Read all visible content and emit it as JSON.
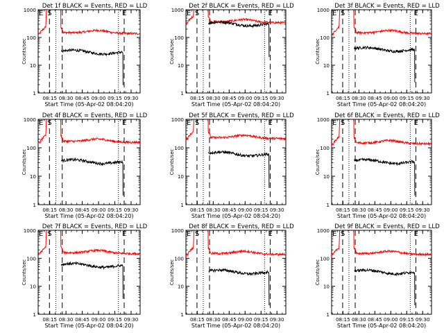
{
  "page": {
    "background": "#ffffff",
    "events_color": "#000000",
    "lld_color": "#ff0000"
  },
  "chart_data": [
    {
      "type": "line",
      "title": "Det 1f BLACK = Events, RED = LLD",
      "xlabel": "Start Time (05-Apr-02 08:04:20)",
      "ylabel": "Counts/sec",
      "yscale": "log",
      "ylim": [
        1,
        1000
      ],
      "yticks": [
        "1",
        "10",
        "100",
        "1000"
      ],
      "xticks": [
        "08:15",
        "08:30",
        "08:45",
        "09:00",
        "09:15",
        "09:30"
      ],
      "flags": [
        "E",
        "S",
        "E"
      ],
      "lld_level": 150,
      "events_level": 32,
      "series": [
        {
          "name": "BLACK = Events",
          "color": "#000000"
        },
        {
          "name": "RED = LLD",
          "color": "#ff0000"
        }
      ]
    },
    {
      "type": "line",
      "title": "Det 2f BLACK = Events, RED = LLD",
      "xlabel": "Start Time (05-Apr-02 08:04:20)",
      "ylabel": "Counts/sec",
      "yscale": "log",
      "ylim": [
        1,
        1000
      ],
      "yticks": [
        "1",
        "10",
        "100",
        "1000"
      ],
      "xticks": [
        "08:15",
        "08:30",
        "08:45",
        "09:00",
        "09:15",
        "09:30"
      ],
      "flags": [
        "E",
        "S",
        "E"
      ],
      "lld_level": 370,
      "events_level": 330,
      "series": [
        {
          "name": "BLACK = Events",
          "color": "#000000"
        },
        {
          "name": "RED = LLD",
          "color": "#ff0000"
        }
      ]
    },
    {
      "type": "line",
      "title": "Det 3f BLACK = Events, RED = LLD",
      "xlabel": "Start Time (05-Apr-02 08:04:20)",
      "ylabel": "Counts/sec",
      "yscale": "log",
      "ylim": [
        1,
        1000
      ],
      "yticks": [
        "1",
        "10",
        "100",
        "1000"
      ],
      "xticks": [
        "08:15",
        "08:30",
        "08:45",
        "09:00",
        "09:15",
        "09:30"
      ],
      "flags": [
        "E",
        "S",
        "E"
      ],
      "lld_level": 150,
      "events_level": 40,
      "series": [
        {
          "name": "BLACK = Events",
          "color": "#000000"
        },
        {
          "name": "RED = LLD",
          "color": "#ff0000"
        }
      ]
    },
    {
      "type": "line",
      "title": "Det 4f BLACK = Events, RED = LLD",
      "xlabel": "Start Time (05-Apr-02 08:04:20)",
      "ylabel": "Counts/sec",
      "yscale": "log",
      "ylim": [
        1,
        1000
      ],
      "yticks": [
        "1",
        "10",
        "100",
        "1000"
      ],
      "xticks": [
        "08:15",
        "08:30",
        "08:45",
        "09:00",
        "09:15",
        "09:30"
      ],
      "flags": [
        "E",
        "S",
        "E"
      ],
      "lld_level": 170,
      "events_level": 35,
      "series": [
        {
          "name": "BLACK = Events",
          "color": "#000000"
        },
        {
          "name": "RED = LLD",
          "color": "#ff0000"
        }
      ]
    },
    {
      "type": "line",
      "title": "Det 5f BLACK = Events, RED = LLD",
      "xlabel": "Start Time (05-Apr-02 08:04:20)",
      "ylabel": "Counts/sec",
      "yscale": "log",
      "ylim": [
        1,
        1000
      ],
      "yticks": [
        "1",
        "10",
        "100",
        "1000"
      ],
      "xticks": [
        "08:15",
        "08:30",
        "08:45",
        "09:00",
        "09:15",
        "09:30"
      ],
      "flags": [
        "E",
        "S",
        "E"
      ],
      "lld_level": 230,
      "events_level": 65,
      "series": [
        {
          "name": "BLACK = Events",
          "color": "#000000"
        },
        {
          "name": "RED = LLD",
          "color": "#ff0000"
        }
      ]
    },
    {
      "type": "line",
      "title": "Det 6f BLACK = Events, RED = LLD",
      "xlabel": "Start Time (05-Apr-02 08:04:20)",
      "ylabel": "Counts/sec",
      "yscale": "log",
      "ylim": [
        1,
        1000
      ],
      "yticks": [
        "1",
        "10",
        "100",
        "1000"
      ],
      "xticks": [
        "08:15",
        "08:30",
        "08:45",
        "09:00",
        "09:15",
        "09:30"
      ],
      "flags": [
        "E",
        "S",
        "E"
      ],
      "lld_level": 150,
      "events_level": 35,
      "series": [
        {
          "name": "BLACK = Events",
          "color": "#000000"
        },
        {
          "name": "RED = LLD",
          "color": "#ff0000"
        }
      ]
    },
    {
      "type": "line",
      "title": "Det 7f BLACK = Events, RED = LLD",
      "xlabel": "Start Time (05-Apr-02 08:04:20)",
      "ylabel": "Counts/sec",
      "yscale": "log",
      "ylim": [
        1,
        1000
      ],
      "yticks": [
        "1",
        "10",
        "100",
        "1000"
      ],
      "xticks": [
        "08:15",
        "08:30",
        "08:45",
        "09:00",
        "09:15",
        "09:30"
      ],
      "flags": [
        "E",
        "S",
        "E"
      ],
      "lld_level": 160,
      "events_level": 60,
      "series": [
        {
          "name": "BLACK = Events",
          "color": "#000000"
        },
        {
          "name": "RED = LLD",
          "color": "#ff0000"
        }
      ]
    },
    {
      "type": "line",
      "title": "Det 8f BLACK = Events, RED = LLD",
      "xlabel": "Start Time (05-Apr-02 08:04:20)",
      "ylabel": "Counts/sec",
      "yscale": "log",
      "ylim": [
        1,
        1000
      ],
      "yticks": [
        "1",
        "10",
        "100",
        "1000"
      ],
      "xticks": [
        "08:15",
        "08:30",
        "08:45",
        "09:00",
        "09:15",
        "09:30"
      ],
      "flags": [
        "E",
        "S",
        "E"
      ],
      "lld_level": 150,
      "events_level": 35,
      "series": [
        {
          "name": "BLACK = Events",
          "color": "#000000"
        },
        {
          "name": "RED = LLD",
          "color": "#ff0000"
        }
      ]
    },
    {
      "type": "line",
      "title": "Det 9f BLACK = Events, RED = LLD",
      "xlabel": "Start Time (05-Apr-02 08:04:20)",
      "ylabel": "Counts/sec",
      "yscale": "log",
      "ylim": [
        1,
        1000
      ],
      "yticks": [
        "1",
        "10",
        "100",
        "1000"
      ],
      "xticks": [
        "08:15",
        "08:30",
        "08:45",
        "09:00",
        "09:15",
        "09:30"
      ],
      "flags": [
        "E",
        "S",
        "E"
      ],
      "lld_level": 150,
      "events_level": 35,
      "series": [
        {
          "name": "BLACK = Events",
          "color": "#000000"
        },
        {
          "name": "RED = LLD",
          "color": "#ff0000"
        }
      ]
    }
  ]
}
